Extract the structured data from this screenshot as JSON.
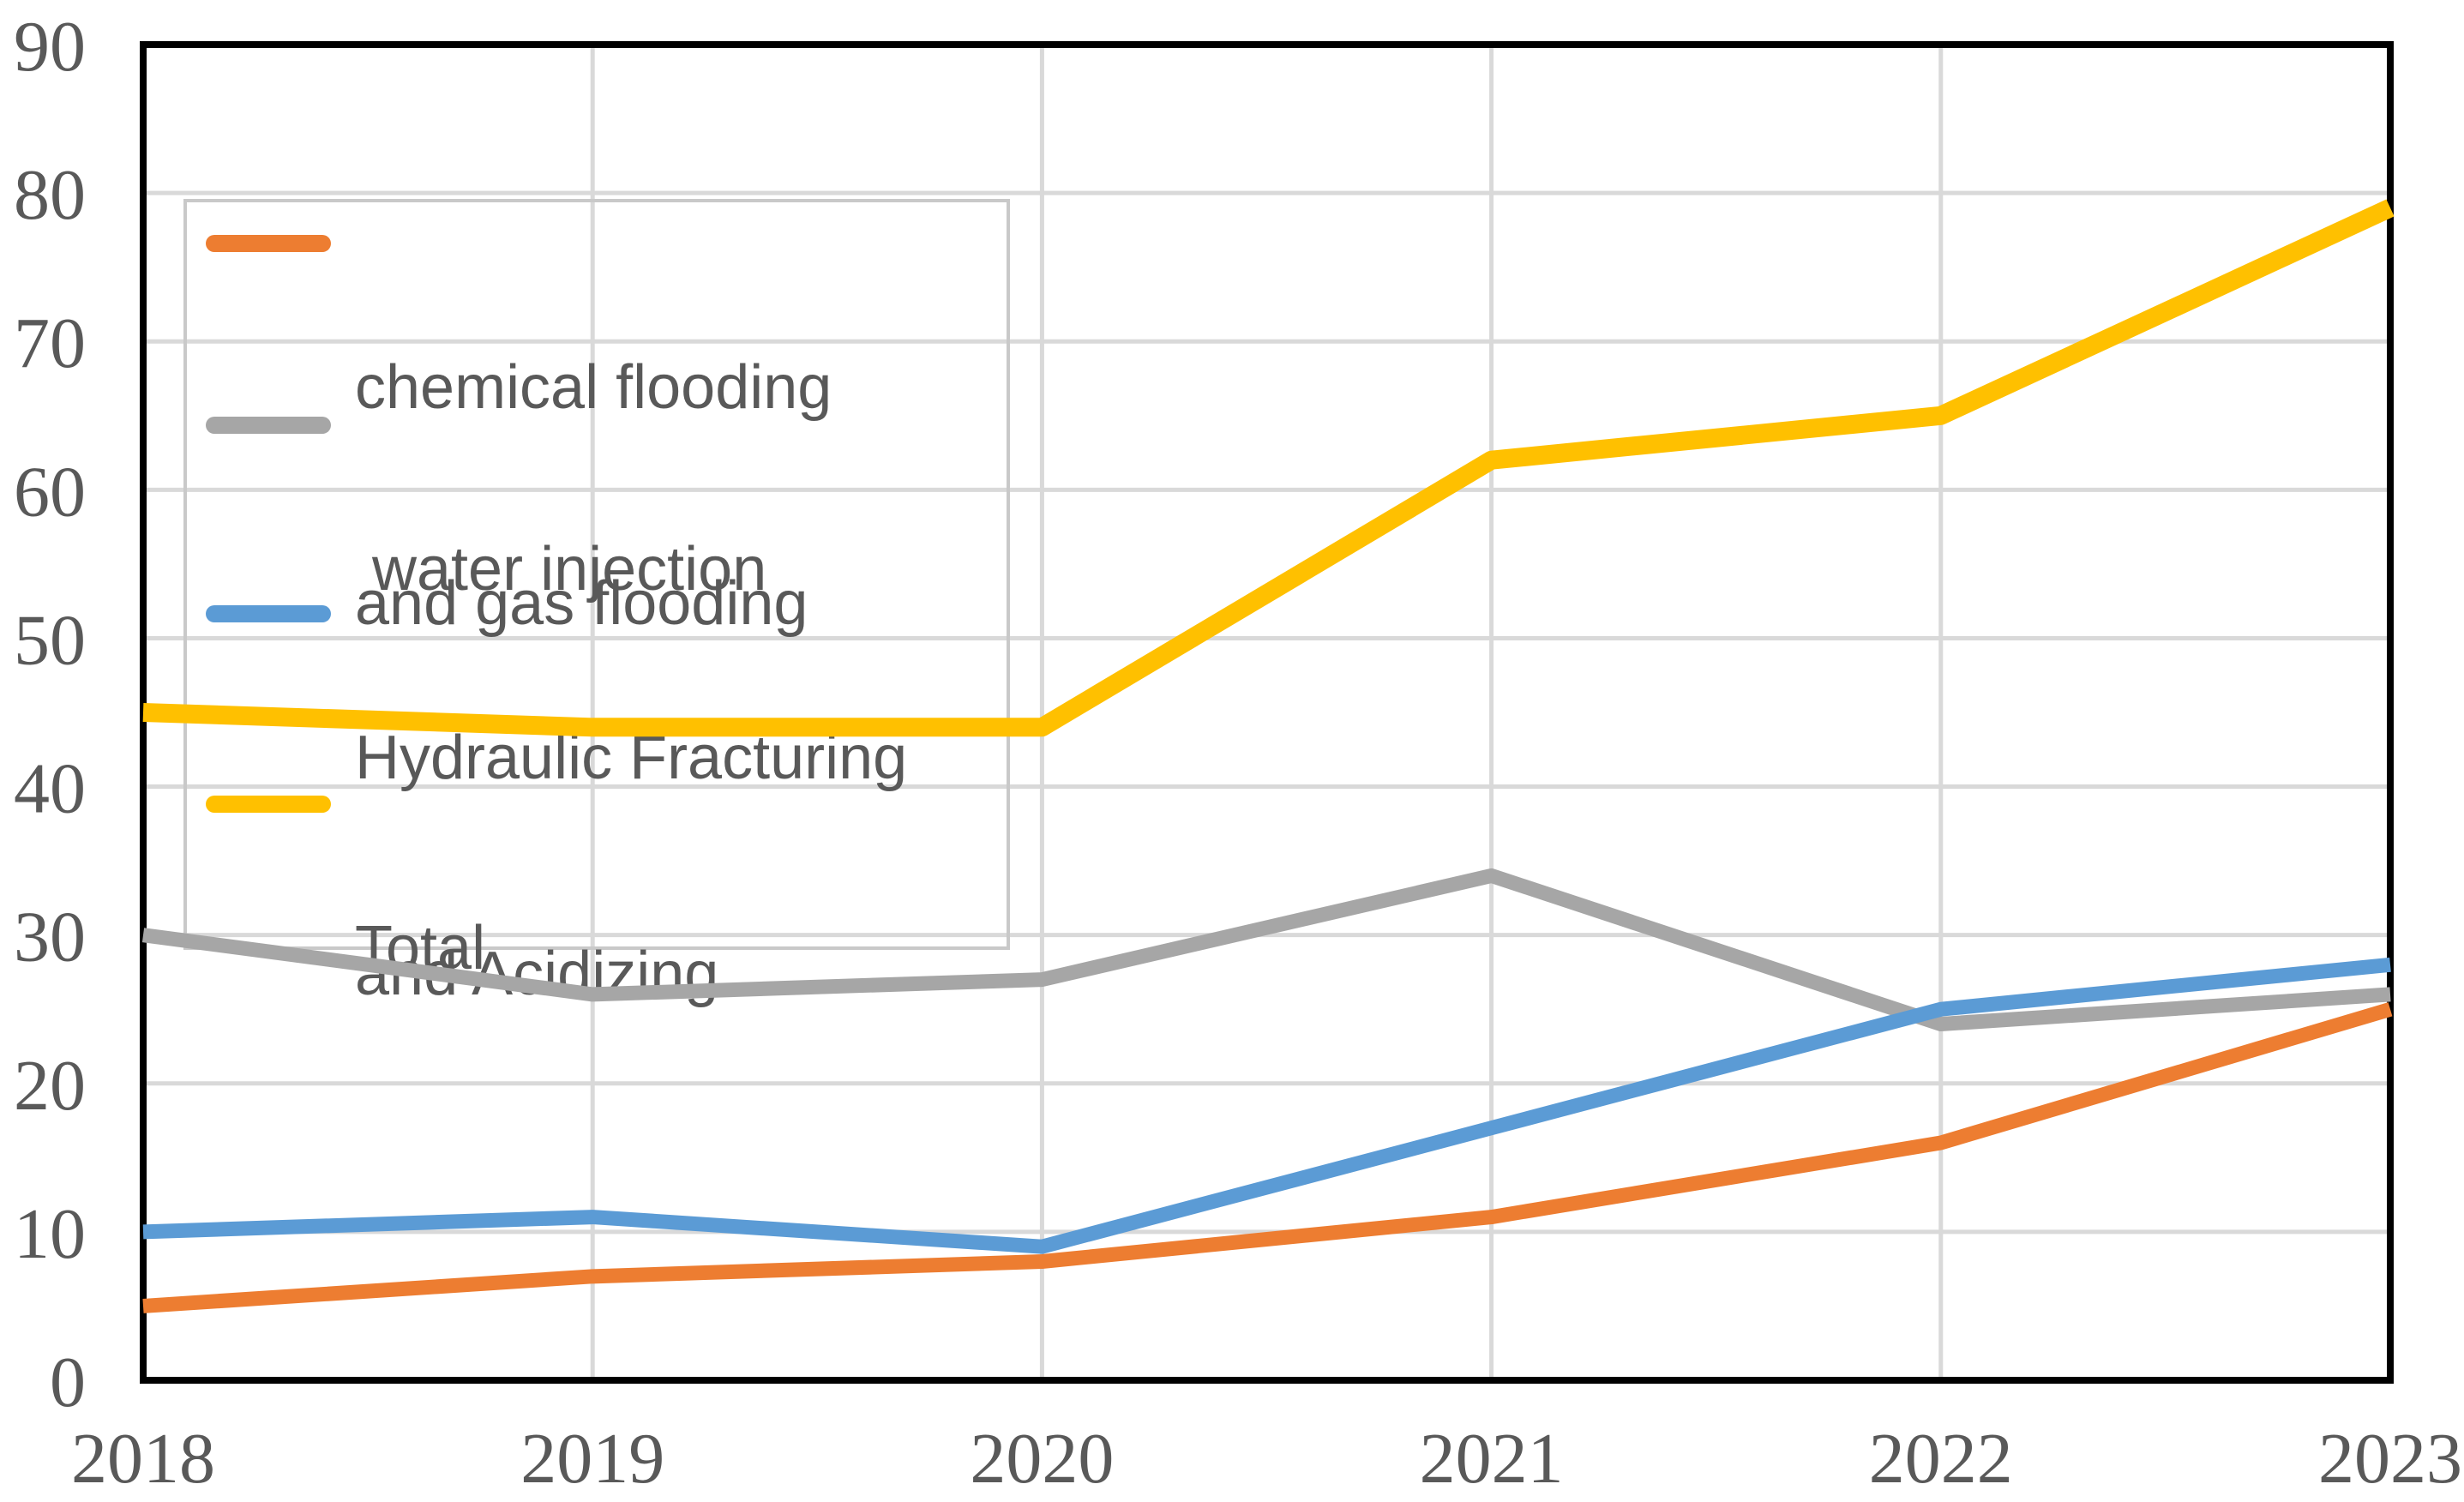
{
  "chart_data": {
    "type": "line",
    "categories": [
      "2018",
      "2019",
      "2020",
      "2021",
      "2022",
      "2023"
    ],
    "series": [
      {
        "name": "chemical flooding and gas flooding",
        "legend_lines": [
          "chemical flooding",
          "and gas flooding"
        ],
        "color": "#ED7D31",
        "line_width": 17,
        "values": [
          5,
          7,
          8,
          11,
          16,
          25
        ]
      },
      {
        "name": "water injection",
        "legend_lines": [
          " water injection"
        ],
        "color": "#A6A6A6",
        "line_width": 17,
        "values": [
          30,
          26,
          27,
          34,
          24,
          26
        ]
      },
      {
        "name": "Hydraulic Fracturing and Acidizing",
        "legend_lines": [
          "Hydraulic Fracturing",
          "and Acidizing"
        ],
        "color": "#5B9BD5",
        "line_width": 17,
        "values": [
          10,
          11,
          9,
          17,
          25,
          28
        ]
      },
      {
        "name": "Total",
        "legend_lines": [
          "Total"
        ],
        "color": "#FFC000",
        "line_width": 22,
        "values": [
          45,
          44,
          44,
          62,
          65,
          79
        ]
      }
    ],
    "y_ticks": [
      0,
      10,
      20,
      30,
      40,
      50,
      60,
      70,
      80,
      90
    ],
    "ylim": [
      0,
      90
    ],
    "grid": true,
    "legend_position": "top-left",
    "title": "",
    "xlabel": "",
    "ylabel": ""
  },
  "style": {
    "background": "#FFFFFF",
    "grid_color": "#D9D9D9",
    "plot_border_color": "#000000",
    "tick_label_color": "#595959",
    "legend_text_color": "#595959",
    "legend_border_color": "#C9C9C9"
  }
}
